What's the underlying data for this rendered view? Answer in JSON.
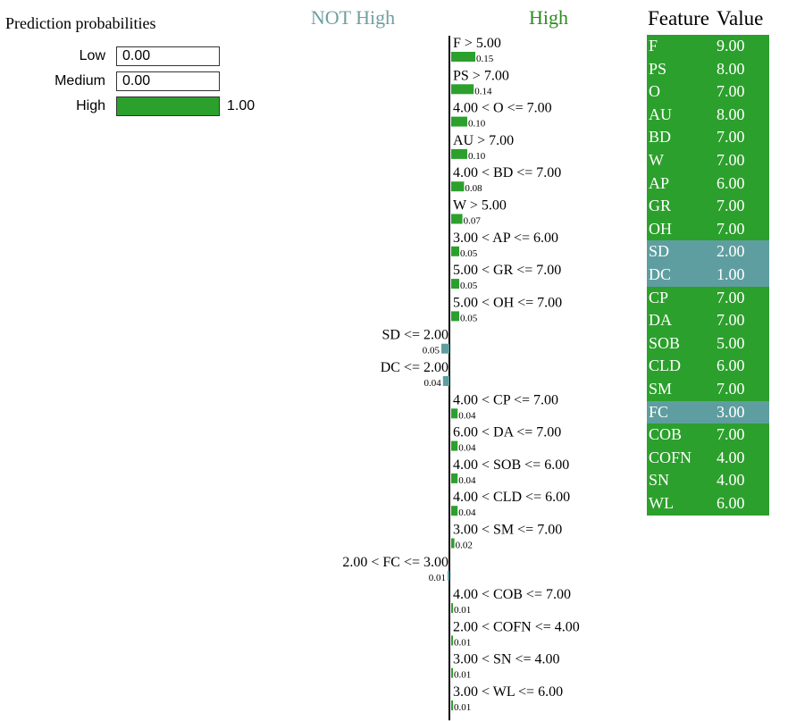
{
  "colors": {
    "positive": "#2ca02c",
    "negative": "#5f9ea0",
    "pos_header": "#2e8b22",
    "neg_header": "#6f9fa0"
  },
  "prediction_probabilities": {
    "title": "Prediction probabilities",
    "items": [
      {
        "label": "Low",
        "value": 0.0,
        "text": "0.00"
      },
      {
        "label": "Medium",
        "value": 0.0,
        "text": "0.00"
      },
      {
        "label": "High",
        "value": 1.0,
        "text": "1.00"
      }
    ]
  },
  "explanation_headers": {
    "negative": "NOT High",
    "positive": "High"
  },
  "chart_data": {
    "type": "bar",
    "orientation": "horizontal-diverging",
    "categories": [
      "F > 5.00",
      "PS > 7.00",
      "4.00 < O <= 7.00",
      "AU > 7.00",
      "4.00 < BD <= 7.00",
      "W > 5.00",
      "3.00 < AP <= 6.00",
      "5.00 < GR <= 7.00",
      "5.00 < OH <= 7.00",
      "SD <= 2.00",
      "DC <= 2.00",
      "4.00 < CP <= 7.00",
      "6.00 < DA <= 7.00",
      "4.00 < SOB <= 6.00",
      "4.00 < CLD <= 6.00",
      "3.00 < SM <= 7.00",
      "2.00 < FC <= 3.00",
      "4.00 < COB <= 7.00",
      "2.00 < COFN <= 4.00",
      "3.00 < SN <= 4.00",
      "3.00 < WL <= 6.00"
    ],
    "values": [
      0.15,
      0.14,
      0.1,
      0.1,
      0.08,
      0.07,
      0.05,
      0.05,
      0.05,
      -0.05,
      -0.04,
      0.04,
      0.04,
      0.04,
      0.04,
      0.02,
      -0.01,
      0.01,
      0.01,
      0.01,
      0.01
    ],
    "labels": [
      "0.15",
      "0.14",
      "0.10",
      "0.10",
      "0.08",
      "0.07",
      "0.05",
      "0.05",
      "0.05",
      "0.05",
      "0.04",
      "0.04",
      "0.04",
      "0.04",
      "0.04",
      "0.02",
      "0.01",
      "0.01",
      "0.01",
      "0.01",
      "0.01"
    ],
    "negative_class": "NOT High",
    "positive_class": "High"
  },
  "feature_table": {
    "headers": {
      "feature": "Feature",
      "value": "Value"
    },
    "rows": [
      {
        "feature": "F",
        "value": "9.00",
        "class": "positive"
      },
      {
        "feature": "PS",
        "value": "8.00",
        "class": "positive"
      },
      {
        "feature": "O",
        "value": "7.00",
        "class": "positive"
      },
      {
        "feature": "AU",
        "value": "8.00",
        "class": "positive"
      },
      {
        "feature": "BD",
        "value": "7.00",
        "class": "positive"
      },
      {
        "feature": "W",
        "value": "7.00",
        "class": "positive"
      },
      {
        "feature": "AP",
        "value": "6.00",
        "class": "positive"
      },
      {
        "feature": "GR",
        "value": "7.00",
        "class": "positive"
      },
      {
        "feature": "OH",
        "value": "7.00",
        "class": "positive"
      },
      {
        "feature": "SD",
        "value": "2.00",
        "class": "negative"
      },
      {
        "feature": "DC",
        "value": "1.00",
        "class": "negative"
      },
      {
        "feature": "CP",
        "value": "7.00",
        "class": "positive"
      },
      {
        "feature": "DA",
        "value": "7.00",
        "class": "positive"
      },
      {
        "feature": "SOB",
        "value": "5.00",
        "class": "positive"
      },
      {
        "feature": "CLD",
        "value": "6.00",
        "class": "positive"
      },
      {
        "feature": "SM",
        "value": "7.00",
        "class": "positive"
      },
      {
        "feature": "FC",
        "value": "3.00",
        "class": "negative"
      },
      {
        "feature": "COB",
        "value": "7.00",
        "class": "positive"
      },
      {
        "feature": "COFN",
        "value": "4.00",
        "class": "positive"
      },
      {
        "feature": "SN",
        "value": "4.00",
        "class": "positive"
      },
      {
        "feature": "WL",
        "value": "6.00",
        "class": "positive"
      }
    ]
  }
}
